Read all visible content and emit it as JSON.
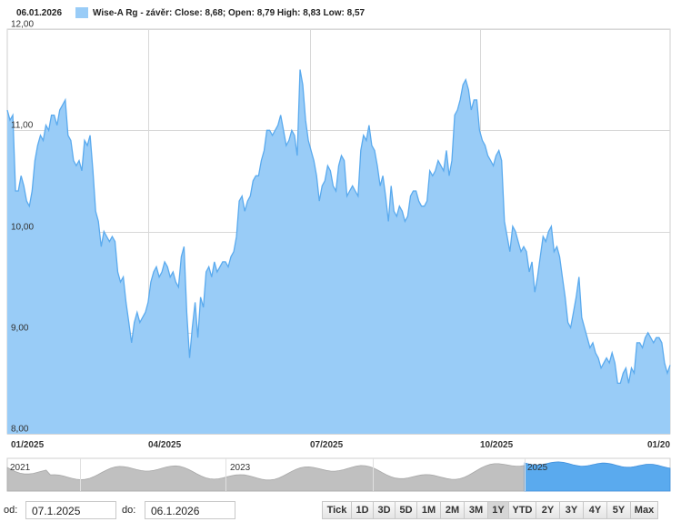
{
  "legend": {
    "date": "06.01.2026",
    "text": "Wise-A Rg - závěr: Close: 8,68; Open: 8,79 High: 8,83 Low: 8,57",
    "color": "#99ccf7"
  },
  "chart_data": {
    "type": "area",
    "title": "",
    "xlabel": "",
    "ylabel": "",
    "ylim": [
      8.0,
      12.0
    ],
    "y_ticks": [
      "12,00",
      "11,00",
      "10,00",
      "9,00",
      "8,00"
    ],
    "x_tick_labels": [
      "01/2025",
      "04/2025",
      "07/2025",
      "10/2025",
      "01/20"
    ],
    "grid": true,
    "fill_color": "#99ccf7",
    "line_color": "#5aaaee",
    "series": [
      {
        "values": [
          11.2,
          11.1,
          11.15,
          10.4,
          10.4,
          10.55,
          10.45,
          10.3,
          10.25,
          10.4,
          10.7,
          10.85,
          10.95,
          10.9,
          11.05,
          11.0,
          11.15,
          11.15,
          11.05,
          11.2,
          11.25,
          11.3,
          10.95,
          10.9,
          10.7,
          10.65,
          10.7,
          10.6,
          10.9,
          10.85,
          10.95,
          10.6,
          10.2,
          10.1,
          9.85,
          10.0,
          9.95,
          9.9,
          9.95,
          9.9,
          9.6,
          9.5,
          9.55,
          9.3,
          9.1,
          8.9,
          9.1,
          9.2,
          9.1,
          9.15,
          9.2,
          9.3,
          9.5,
          9.6,
          9.65,
          9.55,
          9.6,
          9.7,
          9.65,
          9.55,
          9.6,
          9.5,
          9.45,
          9.75,
          9.85,
          9.2,
          8.75,
          9.05,
          9.3,
          8.95,
          9.35,
          9.25,
          9.6,
          9.65,
          9.55,
          9.7,
          9.6,
          9.65,
          9.7,
          9.7,
          9.65,
          9.75,
          9.8,
          9.95,
          10.3,
          10.35,
          10.2,
          10.3,
          10.35,
          10.5,
          10.55,
          10.55,
          10.7,
          10.8,
          11.0,
          11.0,
          10.95,
          11.0,
          11.05,
          11.15,
          11.0,
          10.85,
          10.9,
          11.0,
          10.95,
          10.75,
          11.6,
          11.45,
          11.1,
          10.9,
          10.8,
          10.7,
          10.55,
          10.3,
          10.45,
          10.5,
          10.65,
          10.6,
          10.45,
          10.4,
          10.65,
          10.75,
          10.7,
          10.35,
          10.4,
          10.45,
          10.4,
          10.35,
          10.8,
          10.95,
          10.9,
          11.05,
          10.85,
          10.8,
          10.65,
          10.45,
          10.55,
          10.35,
          10.1,
          10.45,
          10.2,
          10.15,
          10.25,
          10.2,
          10.1,
          10.15,
          10.35,
          10.4,
          10.4,
          10.3,
          10.25,
          10.25,
          10.3,
          10.6,
          10.55,
          10.6,
          10.7,
          10.65,
          10.6,
          10.8,
          10.55,
          10.7,
          11.15,
          11.2,
          11.3,
          11.45,
          11.5,
          11.4,
          11.2,
          11.3,
          11.3,
          11.0,
          10.9,
          10.85,
          10.75,
          10.7,
          10.65,
          10.75,
          10.8,
          10.7,
          10.1,
          9.95,
          9.8,
          10.05,
          10.0,
          9.9,
          9.8,
          9.85,
          9.8,
          9.6,
          9.7,
          9.4,
          9.55,
          9.75,
          9.95,
          9.9,
          10.0,
          10.05,
          9.8,
          9.85,
          9.75,
          9.55,
          9.35,
          9.1,
          9.05,
          9.2,
          9.35,
          9.55,
          9.15,
          9.05,
          8.95,
          8.85,
          8.9,
          8.8,
          8.75,
          8.65,
          8.7,
          8.75,
          8.7,
          8.8,
          8.7,
          8.5,
          8.5,
          8.6,
          8.65,
          8.5,
          8.65,
          8.6,
          8.9,
          8.9,
          8.85,
          8.95,
          9.0,
          8.95,
          8.9,
          8.95,
          8.95,
          8.9,
          8.7,
          8.6,
          8.68
        ]
      }
    ],
    "navigator": {
      "labels": [
        "2021",
        "2023",
        "2025"
      ],
      "selected_color": "#5aaaee",
      "history_color": "#c0c0c0"
    }
  },
  "range": {
    "from_label": "od:",
    "from_value": "07.1.2025",
    "to_label": "do:",
    "to_value": "06.1.2026",
    "buttons": [
      "Tick",
      "1D",
      "3D",
      "5D",
      "1M",
      "2M",
      "3M",
      "1Y",
      "YTD",
      "2Y",
      "3Y",
      "4Y",
      "5Y",
      "Max"
    ],
    "active": "1Y"
  }
}
